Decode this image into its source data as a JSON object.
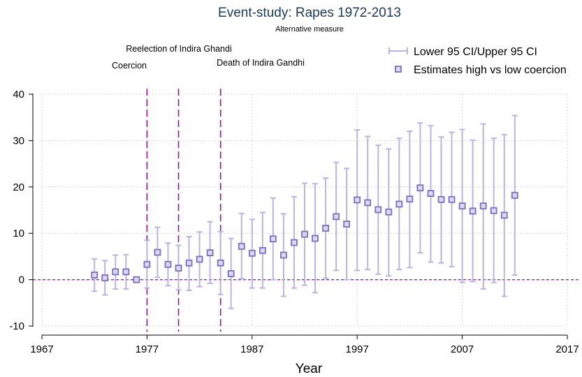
{
  "chart_data": {
    "type": "scatter",
    "title": "Event-study: Rapes 1972-2013",
    "subtitle": "Alternative measure",
    "xlabel": "Year",
    "ylabel": "",
    "xlim": [
      1967,
      2017
    ],
    "ylim": [
      -10,
      40
    ],
    "xticks": [
      1967,
      1977,
      1987,
      1997,
      2007,
      2017
    ],
    "yticks": [
      -10,
      0,
      10,
      20,
      30,
      40
    ],
    "grid": true,
    "legend_position": "top-right",
    "legend": [
      "Lower 95 CI/Upper 95 CI",
      "Estimates high vs low coercion"
    ],
    "colors": {
      "ci": "#b8b4e4",
      "estimate": "#7a6fc2",
      "event_lines": "#8b1a9a",
      "zero_line": "#8b1a9a",
      "grid": "#c8c8c8",
      "title": "#1a3a5c"
    },
    "event_lines": [
      {
        "x": 1977,
        "label": "Coercion"
      },
      {
        "x": 1980,
        "label": "Reelection of Indira Ghandi"
      },
      {
        "x": 1984,
        "label": "Death of Indira Gandhi"
      }
    ],
    "reference_line_y": 0,
    "series": [
      {
        "name": "Estimates high vs low coercion",
        "x": [
          1972,
          1973,
          1974,
          1975,
          1976,
          1977,
          1978,
          1979,
          1980,
          1981,
          1982,
          1983,
          1984,
          1985,
          1986,
          1987,
          1988,
          1989,
          1990,
          1991,
          1992,
          1993,
          1994,
          1995,
          1996,
          1997,
          1998,
          1999,
          2000,
          2001,
          2002,
          2003,
          2004,
          2005,
          2006,
          2007,
          2008,
          2009,
          2010,
          2011,
          2012
        ],
        "y": [
          1.0,
          0.4,
          1.7,
          1.7,
          0.0,
          3.3,
          5.9,
          3.3,
          2.5,
          3.6,
          4.4,
          5.8,
          3.6,
          1.3,
          7.2,
          5.7,
          6.3,
          8.8,
          5.3,
          8.0,
          9.8,
          8.9,
          11.1,
          13.6,
          12.0,
          17.2,
          16.6,
          15.1,
          14.6,
          16.3,
          17.4,
          19.8,
          18.6,
          17.3,
          17.3,
          15.9,
          14.8,
          15.9,
          14.9,
          13.9,
          18.2
        ]
      },
      {
        "name": "Lower 95 CI/Upper 95 CI",
        "x": [
          1972,
          1973,
          1974,
          1975,
          1976,
          1977,
          1978,
          1979,
          1980,
          1981,
          1982,
          1983,
          1984,
          1985,
          1986,
          1987,
          1988,
          1989,
          1990,
          1991,
          1992,
          1993,
          1994,
          1995,
          1996,
          1997,
          1998,
          1999,
          2000,
          2001,
          2002,
          2003,
          2004,
          2005,
          2006,
          2007,
          2008,
          2009,
          2010,
          2011,
          2012
        ],
        "lower": [
          -2.5,
          -3.3,
          -2.0,
          -2.0,
          0.0,
          -1.8,
          0.5,
          -1.3,
          -2.2,
          -2.3,
          -1.5,
          -0.8,
          -3.2,
          -6.2,
          0.2,
          -1.8,
          -1.8,
          0.0,
          -3.6,
          -1.8,
          -1.2,
          -2.8,
          0.3,
          2.0,
          0.0,
          2.0,
          2.2,
          1.2,
          0.8,
          2.2,
          2.6,
          5.8,
          3.8,
          3.6,
          2.8,
          -0.6,
          -0.4,
          -2.0,
          -0.6,
          -3.6,
          1.0
        ],
        "upper": [
          4.5,
          4.1,
          5.3,
          5.4,
          0.0,
          8.5,
          11.3,
          7.9,
          7.4,
          9.3,
          10.3,
          12.5,
          10.4,
          8.9,
          14.3,
          13.0,
          14.5,
          17.6,
          14.2,
          17.9,
          20.8,
          20.7,
          21.9,
          25.3,
          24.0,
          32.3,
          30.9,
          29.0,
          28.2,
          30.5,
          32.0,
          33.8,
          33.2,
          30.8,
          31.8,
          32.4,
          30.1,
          33.6,
          30.5,
          31.3,
          35.4
        ]
      }
    ]
  }
}
